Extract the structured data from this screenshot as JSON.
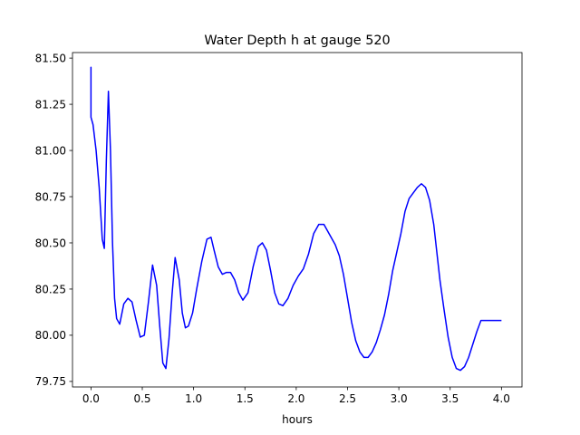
{
  "chart_data": {
    "type": "line",
    "title": "Water Depth h at gauge 520",
    "xlabel": "hours",
    "ylabel": "",
    "xlim": [
      -0.18,
      4.2
    ],
    "ylim": [
      79.72,
      81.53
    ],
    "xticks": [
      0.0,
      0.5,
      1.0,
      1.5,
      2.0,
      2.5,
      3.0,
      3.5,
      4.0
    ],
    "xtick_labels": [
      "0.0",
      "0.5",
      "1.0",
      "1.5",
      "2.0",
      "2.5",
      "3.0",
      "3.5",
      "4.0"
    ],
    "yticks": [
      79.75,
      80.0,
      80.25,
      80.5,
      80.75,
      81.0,
      81.25,
      81.5
    ],
    "ytick_labels": [
      "79.75",
      "80.00",
      "80.25",
      "80.50",
      "80.75",
      "81.00",
      "81.25",
      "81.50"
    ],
    "grid": false,
    "series": [
      {
        "color": "#0000ff",
        "x": [
          0.0,
          0.0,
          0.0,
          0.02,
          0.05,
          0.08,
          0.11,
          0.13,
          0.15,
          0.17,
          0.19,
          0.21,
          0.23,
          0.25,
          0.28,
          0.32,
          0.36,
          0.4,
          0.44,
          0.48,
          0.52,
          0.56,
          0.6,
          0.64,
          0.67,
          0.7,
          0.73,
          0.76,
          0.79,
          0.82,
          0.86,
          0.89,
          0.92,
          0.95,
          0.99,
          1.03,
          1.08,
          1.13,
          1.17,
          1.2,
          1.24,
          1.28,
          1.32,
          1.36,
          1.4,
          1.44,
          1.48,
          1.53,
          1.58,
          1.63,
          1.67,
          1.71,
          1.75,
          1.79,
          1.83,
          1.87,
          1.92,
          1.97,
          2.02,
          2.07,
          2.12,
          2.17,
          2.22,
          2.27,
          2.3,
          2.34,
          2.38,
          2.42,
          2.46,
          2.5,
          2.54,
          2.58,
          2.62,
          2.66,
          2.7,
          2.74,
          2.78,
          2.82,
          2.86,
          2.9,
          2.94,
          2.98,
          3.02,
          3.06,
          3.1,
          3.14,
          3.18,
          3.22,
          3.26,
          3.3,
          3.34,
          3.37,
          3.4,
          3.44,
          3.48,
          3.52,
          3.56,
          3.6,
          3.64,
          3.68,
          3.72,
          3.76,
          3.8,
          3.84,
          3.88,
          3.92,
          3.96,
          4.0
        ],
        "y": [
          81.18,
          81.45,
          81.18,
          81.14,
          81.0,
          80.8,
          80.52,
          80.47,
          80.95,
          81.32,
          81.0,
          80.5,
          80.2,
          80.09,
          80.06,
          80.17,
          80.2,
          80.18,
          80.08,
          79.99,
          80.0,
          80.18,
          80.38,
          80.27,
          80.05,
          79.85,
          79.82,
          79.98,
          80.22,
          80.42,
          80.3,
          80.12,
          80.04,
          80.05,
          80.12,
          80.25,
          80.4,
          80.52,
          80.53,
          80.46,
          80.37,
          80.33,
          80.34,
          80.34,
          80.3,
          80.23,
          80.19,
          80.23,
          80.37,
          80.48,
          80.5,
          80.46,
          80.35,
          80.23,
          80.17,
          80.16,
          80.2,
          80.27,
          80.32,
          80.36,
          80.44,
          80.55,
          80.6,
          80.6,
          80.57,
          80.53,
          80.49,
          80.43,
          80.33,
          80.2,
          80.07,
          79.97,
          79.91,
          79.88,
          79.88,
          79.91,
          79.96,
          80.03,
          80.11,
          80.22,
          80.35,
          80.45,
          80.55,
          80.67,
          80.74,
          80.77,
          80.8,
          80.82,
          80.8,
          80.73,
          80.6,
          80.45,
          80.3,
          80.14,
          79.99,
          79.88,
          79.82,
          79.81,
          79.83,
          79.88,
          79.95,
          80.02,
          80.08,
          80.08,
          80.08,
          80.08,
          80.08,
          80.08
        ]
      }
    ]
  }
}
